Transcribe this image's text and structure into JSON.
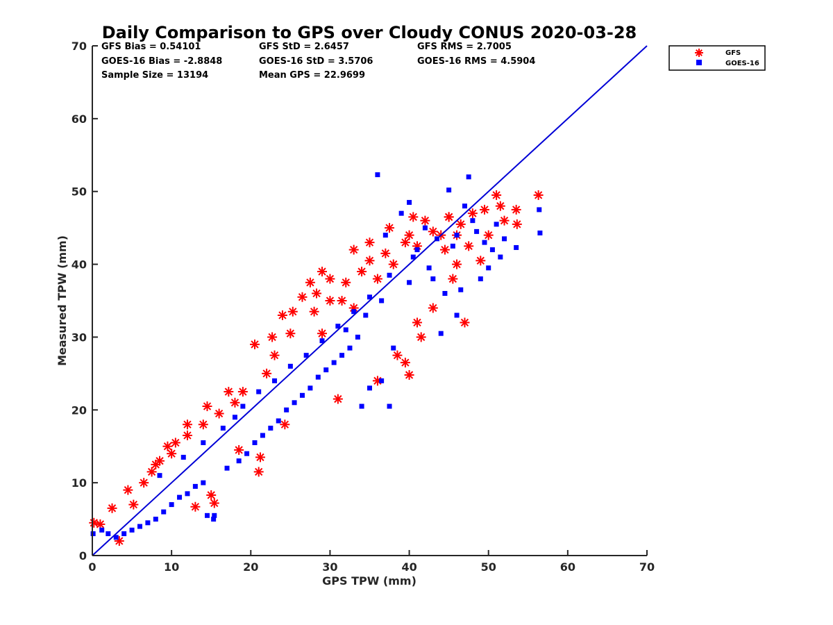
{
  "chart_data": {
    "type": "scatter",
    "title": "Daily Comparison to GPS over Cloudy CONUS 2020-03-28",
    "xlabel": "GPS TPW (mm)",
    "ylabel": "Measured TPW (mm)",
    "xlim": [
      0,
      70
    ],
    "ylim": [
      0,
      70
    ],
    "xticks": [
      "0",
      "10",
      "20",
      "30",
      "40",
      "50",
      "60",
      "70"
    ],
    "yticks": [
      "0",
      "10",
      "20",
      "30",
      "40",
      "50",
      "60",
      "70"
    ],
    "grid": false,
    "legend_position": "outside-top-right",
    "reference_line": {
      "x": [
        0,
        70
      ],
      "y": [
        0,
        70
      ],
      "color": "#0000d6"
    },
    "stats": [
      "GFS Bias = 0.54101",
      "GFS StD = 2.6457",
      "GFS RMS = 2.7005",
      "GOES-16 Bias = -2.8848",
      "GOES-16 StD = 3.5706",
      "GOES-16 RMS = 4.5904",
      "Sample Size = 13194",
      "Mean GPS = 22.9699"
    ],
    "series": [
      {
        "name": "GFS",
        "marker": "asterisk",
        "color": "#ff0000",
        "x": [
          0.2,
          1.0,
          2.5,
          3.4,
          4.5,
          5.2,
          6.5,
          7.5,
          8.5,
          9.5,
          10.5,
          12.0,
          13.0,
          14.5,
          15.0,
          15.4,
          17.2,
          18.5,
          20.5,
          21.0,
          21.2,
          22.0,
          22.7,
          24.0,
          24.3,
          25.3,
          26.5,
          27.5,
          28.3,
          29.0,
          30.0,
          31.0,
          31.5,
          33.0,
          34.0,
          35.0,
          36.0,
          37.5,
          38.0,
          38.5,
          39.5,
          39.5,
          40.0,
          40.5,
          41.0,
          41.5,
          42.0,
          43.0,
          44.0,
          44.5,
          45.0,
          45.5,
          46.0,
          46.5,
          47.0,
          47.5,
          48.0,
          49.0,
          49.5,
          50.0,
          51.0,
          51.5,
          52.0,
          53.5,
          53.6,
          56.3,
          8.0,
          10.0,
          12.0,
          14.0,
          16.0,
          18.0,
          19.0,
          23.0,
          25.0,
          28.0,
          30.0,
          32.0,
          35.0,
          37.0,
          40.0,
          43.0,
          45.0,
          29.0,
          33.0,
          36.0,
          41.0,
          46.0
        ],
        "y": [
          4.5,
          4.3,
          6.5,
          2.0,
          9.0,
          7.0,
          10.0,
          11.5,
          13.0,
          15.0,
          15.5,
          18.0,
          6.7,
          20.5,
          8.3,
          7.2,
          22.5,
          14.5,
          29.0,
          11.5,
          13.5,
          25.0,
          30.0,
          33.0,
          18.0,
          33.5,
          35.5,
          37.5,
          36.0,
          39.0,
          38.0,
          21.5,
          35.0,
          42.0,
          39.0,
          43.0,
          24.0,
          45.0,
          40.0,
          27.5,
          26.5,
          43.0,
          24.8,
          46.5,
          32.0,
          30.0,
          46.0,
          34.0,
          44.0,
          42.0,
          46.5,
          38.0,
          40.0,
          45.5,
          32.0,
          42.5,
          47.0,
          40.5,
          47.5,
          44.0,
          49.5,
          48.0,
          46.0,
          47.5,
          45.5,
          49.5,
          12.5,
          14.0,
          16.5,
          18.0,
          19.5,
          21.0,
          22.5,
          27.5,
          30.5,
          33.5,
          35.0,
          37.5,
          40.5,
          41.5,
          44.0,
          44.5,
          46.5,
          30.5,
          34.0,
          38.0,
          42.5,
          44.0
        ]
      },
      {
        "name": "GOES-16",
        "marker": "square",
        "color": "#0000ff",
        "x": [
          0.1,
          1.2,
          2.0,
          3.0,
          4.0,
          5.0,
          6.0,
          7.0,
          8.0,
          9.0,
          10.0,
          11.0,
          12.0,
          13.0,
          14.0,
          14.5,
          15.3,
          15.4,
          17.0,
          18.5,
          19.5,
          20.5,
          21.5,
          22.5,
          23.5,
          24.5,
          25.5,
          26.5,
          27.5,
          28.5,
          29.5,
          30.5,
          31.5,
          32.5,
          33.5,
          34.0,
          35.0,
          36.0,
          36.5,
          37.0,
          37.5,
          38.0,
          39.0,
          40.0,
          41.0,
          42.0,
          43.0,
          44.0,
          44.5,
          45.0,
          46.0,
          46.5,
          47.0,
          47.5,
          48.0,
          48.5,
          49.0,
          49.5,
          50.0,
          50.5,
          51.0,
          51.5,
          52.0,
          53.5,
          56.4,
          56.5,
          8.5,
          11.5,
          14.0,
          16.5,
          18.0,
          19.0,
          21.0,
          23.0,
          25.0,
          27.0,
          29.0,
          31.0,
          33.0,
          35.0,
          37.5,
          40.5,
          43.5,
          46.0,
          32.0,
          34.5,
          36.5,
          40.0,
          42.5,
          45.5
        ],
        "y": [
          3.0,
          3.5,
          3.0,
          2.5,
          3.0,
          3.5,
          4.0,
          4.5,
          5.0,
          6.0,
          7.0,
          8.0,
          8.5,
          9.5,
          10.0,
          5.5,
          5.0,
          5.5,
          12.0,
          13.0,
          14.0,
          15.5,
          16.5,
          17.5,
          18.5,
          20.0,
          21.0,
          22.0,
          23.0,
          24.5,
          25.5,
          26.5,
          27.5,
          28.5,
          30.0,
          20.5,
          23.0,
          52.3,
          24.0,
          44.0,
          20.5,
          28.5,
          47.0,
          48.5,
          42.0,
          45.0,
          38.0,
          30.5,
          36.0,
          50.2,
          33.0,
          36.5,
          48.0,
          52.0,
          46.0,
          44.5,
          38.0,
          43.0,
          39.5,
          42.0,
          45.5,
          41.0,
          43.5,
          42.3,
          47.5,
          44.3,
          11.0,
          13.5,
          15.5,
          17.5,
          19.0,
          20.5,
          22.5,
          24.0,
          26.0,
          27.5,
          29.5,
          31.5,
          33.5,
          35.5,
          38.5,
          41.0,
          43.5,
          44.0,
          31.0,
          33.0,
          35.0,
          37.5,
          39.5,
          42.5
        ]
      }
    ]
  }
}
